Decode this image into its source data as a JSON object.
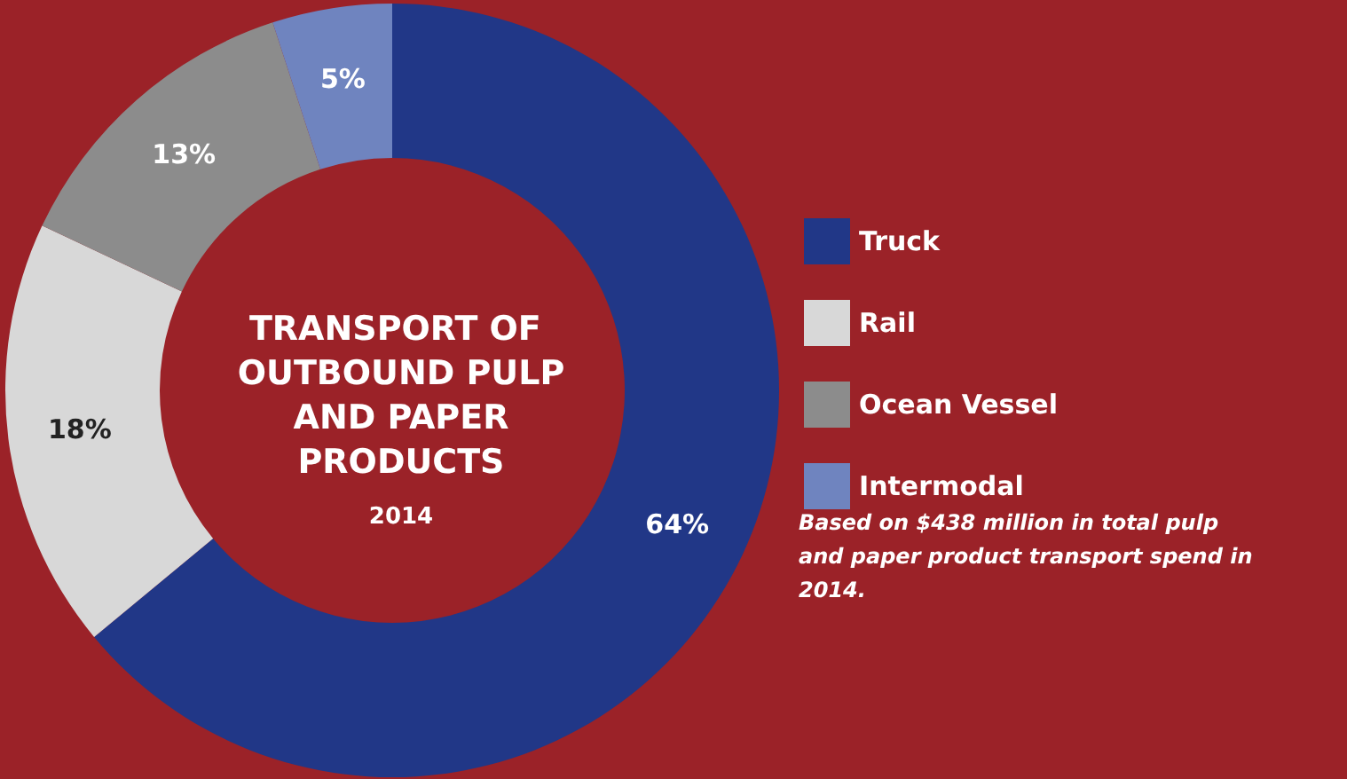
{
  "chart_data": {
    "type": "donut",
    "title": "TRANSPORT OF OUTBOUND PULP AND PAPER PRODUCTS",
    "subtitle": "2014",
    "categories": [
      "Truck",
      "Rail",
      "Ocean Vessel",
      "Intermodal"
    ],
    "values": [
      64,
      18,
      13,
      5
    ],
    "colors": [
      "#213787",
      "#d8d8d8",
      "#8c8c8c",
      "#6f84bf"
    ],
    "value_labels": [
      "64%",
      "18%",
      "13%",
      "5%"
    ],
    "legend": "right",
    "annotations": [
      "Based on $438 million in total pulp and paper product transport spend in 2014."
    ]
  }
}
